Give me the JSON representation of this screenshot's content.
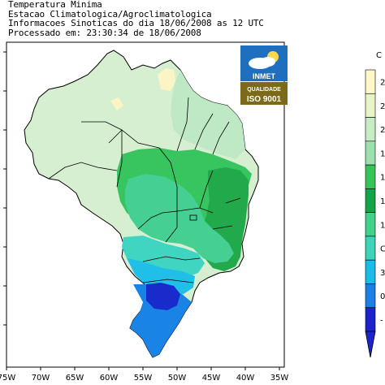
{
  "header": {
    "line1": "Temperatura Minima",
    "line2": "Estacao Climatologica/Agroclimatologica",
    "line3": "Informacoes Sinoticas do dia 18/06/2008 as 12 UTC",
    "line4": "Processado em: 23:30:34 de 18/06/2008"
  },
  "logo": {
    "name": "INMET",
    "badge_top": "QUALIDADE",
    "badge_bottom": "ISO 9001",
    "sky_color": "#1f6fc0",
    "badge_color": "#7a6a1a"
  },
  "x_ticks": [
    "75W",
    "70W",
    "65W",
    "60W",
    "55W",
    "50W",
    "45W",
    "40W",
    "35W"
  ],
  "colorbar": {
    "unit": "C",
    "labels": [
      "2",
      "2",
      "2",
      "1",
      "1",
      "1",
      "1",
      "C",
      "3",
      "0",
      "-"
    ],
    "colors": [
      "#fff7c8",
      "#e8f4c8",
      "#c8ecc4",
      "#9fe0b0",
      "#35c35a",
      "#16a448",
      "#42d08a",
      "#3ed4b8",
      "#19bde8",
      "#1a7fe6",
      "#1c22cc"
    ]
  },
  "map": {
    "ocean": "#ffffff",
    "region_colors": {
      "north_pale": "#d6efd0",
      "northeast_light": "#bfe8c4",
      "center_green": "#38c45e",
      "southeast_green": "#22a94c",
      "teal": "#45cf93",
      "cyan": "#3fd5c0",
      "sky": "#1fbfe8",
      "blue": "#1a84e6",
      "deep_blue": "#1a2bcc",
      "yellow": "#fbf5c6"
    }
  }
}
